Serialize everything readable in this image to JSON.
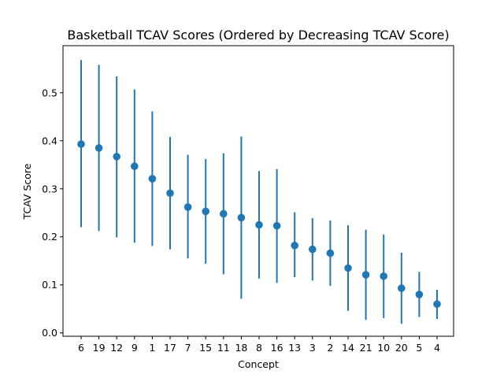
{
  "chart_data": {
    "type": "scatter",
    "title": "Basketball TCAV Scores (Ordered by Decreasing TCAV Score)",
    "xlabel": "Concept",
    "ylabel": "TCAV Score",
    "ylim": [
      -0.007,
      0.598
    ],
    "yticks": [
      "0.0",
      "0.1",
      "0.2",
      "0.3",
      "0.4",
      "0.5"
    ],
    "grid": false,
    "legend": "none",
    "color": "#1f77b4",
    "categories": [
      "6",
      "19",
      "12",
      "9",
      "1",
      "17",
      "7",
      "15",
      "11",
      "18",
      "8",
      "16",
      "13",
      "3",
      "2",
      "14",
      "21",
      "10",
      "20",
      "5",
      "4"
    ],
    "values": [
      0.393,
      0.385,
      0.367,
      0.347,
      0.321,
      0.291,
      0.262,
      0.253,
      0.248,
      0.24,
      0.225,
      0.223,
      0.182,
      0.174,
      0.166,
      0.135,
      0.121,
      0.118,
      0.093,
      0.08,
      0.06
    ],
    "lower": [
      0.22,
      0.212,
      0.199,
      0.188,
      0.181,
      0.174,
      0.155,
      0.144,
      0.122,
      0.071,
      0.113,
      0.104,
      0.116,
      0.109,
      0.098,
      0.046,
      0.027,
      0.031,
      0.019,
      0.033,
      0.029
    ],
    "upper": [
      0.568,
      0.558,
      0.534,
      0.507,
      0.461,
      0.408,
      0.371,
      0.362,
      0.374,
      0.409,
      0.337,
      0.341,
      0.251,
      0.239,
      0.234,
      0.224,
      0.215,
      0.205,
      0.167,
      0.127,
      0.09
    ]
  }
}
